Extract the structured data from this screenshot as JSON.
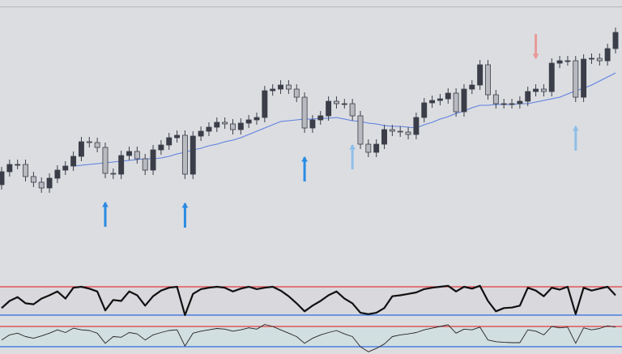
{
  "chart_data": {
    "type": "candlestick",
    "ylim": [
      0,
      340
    ],
    "open": [
      112,
      128,
      137,
      137,
      122,
      115,
      108,
      120,
      130,
      135,
      147,
      165,
      164,
      158,
      126,
      125,
      148,
      153,
      144,
      130,
      155,
      161,
      170,
      173,
      125,
      172,
      178,
      183,
      189,
      187,
      180,
      188,
      192,
      195,
      228,
      230,
      235,
      230,
      220,
      182,
      192,
      197,
      215,
      212,
      212,
      197,
      162,
      152,
      162,
      180,
      178,
      177,
      174,
      195,
      213,
      216,
      218,
      225,
      202,
      230,
      235,
      260,
      223,
      212,
      212,
      212,
      215,
      227,
      230,
      227,
      262,
      265,
      265,
      220,
      267,
      268,
      265,
      280
    ],
    "high": [
      134,
      143,
      143,
      143,
      128,
      121,
      126,
      136,
      141,
      153,
      171,
      171,
      170,
      164,
      132,
      154,
      159,
      159,
      150,
      161,
      167,
      176,
      179,
      179,
      178,
      184,
      189,
      195,
      195,
      193,
      194,
      198,
      201,
      234,
      236,
      241,
      241,
      236,
      226,
      198,
      203,
      221,
      221,
      218,
      218,
      203,
      168,
      168,
      186,
      186,
      184,
      183,
      201,
      219,
      222,
      224,
      231,
      231,
      236,
      241,
      266,
      266,
      229,
      218,
      218,
      221,
      233,
      236,
      236,
      268,
      271,
      271,
      271,
      273,
      274,
      274,
      286,
      306
    ],
    "low": [
      106,
      122,
      131,
      116,
      109,
      102,
      102,
      114,
      124,
      129,
      141,
      158,
      152,
      120,
      119,
      119,
      142,
      138,
      124,
      124,
      149,
      155,
      164,
      119,
      119,
      166,
      172,
      177,
      181,
      174,
      174,
      182,
      186,
      189,
      222,
      224,
      224,
      214,
      176,
      176,
      186,
      191,
      206,
      206,
      191,
      156,
      146,
      146,
      156,
      172,
      171,
      168,
      168,
      189,
      207,
      210,
      212,
      196,
      196,
      224,
      229,
      217,
      206,
      206,
      206,
      206,
      209,
      221,
      221,
      221,
      256,
      259,
      214,
      214,
      261,
      259,
      259,
      274
    ],
    "close": [
      128,
      137,
      137,
      122,
      115,
      108,
      120,
      130,
      135,
      147,
      165,
      164,
      158,
      126,
      125,
      148,
      153,
      144,
      130,
      155,
      161,
      170,
      173,
      125,
      172,
      178,
      183,
      189,
      187,
      180,
      188,
      192,
      195,
      228,
      230,
      235,
      230,
      220,
      182,
      192,
      197,
      215,
      212,
      212,
      197,
      162,
      152,
      162,
      180,
      178,
      177,
      174,
      195,
      213,
      216,
      218,
      225,
      202,
      230,
      235,
      260,
      223,
      212,
      212,
      212,
      215,
      227,
      230,
      227,
      262,
      265,
      265,
      220,
      267,
      268,
      265,
      280,
      300
    ],
    "up_color": "#3b3e48",
    "down_color": "#b9bac0",
    "ma": {
      "color": "#5b7fe0",
      "values": [
        null,
        null,
        null,
        null,
        null,
        null,
        null,
        null,
        null,
        135,
        136,
        137,
        138,
        139,
        140,
        141,
        142,
        143,
        144,
        144,
        145,
        147,
        150,
        152,
        155,
        157,
        160,
        162,
        165,
        167,
        170,
        174,
        178,
        182,
        186,
        190,
        191,
        192,
        193,
        193,
        194,
        194,
        195,
        193,
        191,
        190,
        188,
        187,
        185,
        184,
        184,
        183,
        182,
        186,
        189,
        193,
        196,
        200,
        203,
        207,
        210,
        210,
        211,
        211,
        211,
        212,
        212,
        214,
        216,
        218,
        220,
        224,
        228,
        231,
        235,
        240,
        245,
        250
      ]
    },
    "signals": [
      {
        "index": 13,
        "type": "buy",
        "color": "#2a8be2"
      },
      {
        "index": 23,
        "type": "buy",
        "color": "#2a8be2"
      },
      {
        "index": 38,
        "type": "buy",
        "color": "#2a8be2"
      },
      {
        "index": 44,
        "type": "buy",
        "color": "#8fbfe8"
      },
      {
        "index": 67,
        "type": "sell",
        "color": "#e89a9a"
      },
      {
        "index": 72,
        "type": "buy",
        "color": "#8fbfe8"
      }
    ],
    "oscillators": [
      {
        "color": "#111111",
        "width": 2.2,
        "ylim": [
          20,
          80
        ],
        "levels": [
          80,
          20
        ],
        "level_colors": [
          "#e23c3c",
          "#2d6de0"
        ],
        "fill": "#d9d8dc",
        "values": [
          35,
          50,
          58,
          45,
          43,
          55,
          62,
          70,
          55,
          78,
          80,
          76,
          70,
          30,
          52,
          50,
          70,
          62,
          40,
          60,
          72,
          78,
          80,
          20,
          65,
          75,
          78,
          80,
          78,
          70,
          76,
          80,
          75,
          78,
          80,
          72,
          60,
          45,
          28,
          40,
          50,
          62,
          70,
          55,
          45,
          25,
          22,
          25,
          35,
          60,
          62,
          65,
          68,
          75,
          78,
          80,
          82,
          70,
          80,
          76,
          82,
          50,
          28,
          35,
          36,
          40,
          78,
          72,
          60,
          78,
          74,
          80,
          22,
          78,
          72,
          76,
          80,
          62
        ]
      },
      {
        "color": "#222222",
        "width": 0.9,
        "ylim": [
          20,
          80
        ],
        "levels": [
          80,
          20
        ],
        "level_colors": [
          "#e23c3c",
          "#2d6de0"
        ],
        "fill": "#d2dfe1",
        "values": [
          40,
          55,
          60,
          50,
          45,
          52,
          60,
          70,
          62,
          75,
          70,
          68,
          60,
          30,
          50,
          48,
          62,
          58,
          40,
          55,
          62,
          68,
          70,
          22,
          60,
          66,
          70,
          74,
          72,
          66,
          70,
          76,
          72,
          86,
          80,
          70,
          60,
          50,
          30,
          45,
          55,
          62,
          68,
          58,
          50,
          20,
          5,
          15,
          28,
          50,
          55,
          58,
          62,
          70,
          75,
          80,
          85,
          60,
          72,
          70,
          78,
          40,
          35,
          33,
          32,
          32,
          70,
          66,
          55,
          80,
          76,
          78,
          30,
          76,
          70,
          74,
          82,
          78
        ]
      }
    ]
  }
}
